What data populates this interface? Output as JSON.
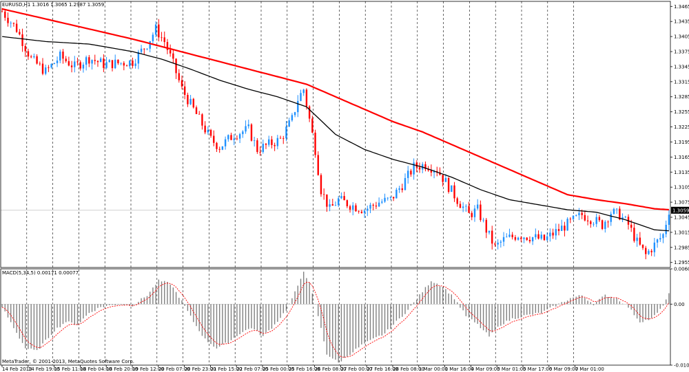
{
  "chart_data": [
    {
      "type": "candlestick",
      "title": "EURUSD,H1 1.3016 1.3065 1.2987 1.3059",
      "current_price": 1.3059,
      "current_price_label": "1.3059",
      "ylim": [
        1.2945,
        1.3475
      ],
      "y_ticks": [
        1.3465,
        1.3435,
        1.3405,
        1.3375,
        1.3345,
        1.3315,
        1.3285,
        1.3255,
        1.3225,
        1.3195,
        1.3165,
        1.3135,
        1.3105,
        1.3075,
        1.3045,
        1.3015,
        1.2985,
        1.2955
      ],
      "y_tick_labels": [
        "1.3465",
        "1.3435",
        "1.3405",
        "1.3375",
        "1.3345",
        "1.3315",
        "1.3285",
        "1.3255",
        "1.3225",
        "1.3195",
        "1.3165",
        "1.3135",
        "1.3105",
        "1.3075",
        "1.3045",
        "1.3015",
        "1.2985",
        "1.2955"
      ],
      "x_ticks": [
        "14 Feb 2013",
        "14 Feb 19:00",
        "15 Feb 11:00",
        "18 Feb 04:00",
        "18 Feb 20:00",
        "19 Feb 12:00",
        "20 Feb 07:00",
        "20 Feb 23:00",
        "21 Feb 15:00",
        "22 Feb 07:00",
        "25 Feb 00:00",
        "25 Feb 16:00",
        "26 Feb 08:00",
        "27 Feb 00:00",
        "27 Feb 16:00",
        "28 Feb 08:00",
        "1 Mar 00:00",
        "1 Mar 16:00",
        "4 Mar 09:00",
        "5 Mar 01:00",
        "5 Mar 17:00",
        "6 Mar 09:00",
        "7 Mar 01:00"
      ],
      "grid": true,
      "up_color": "#1e90ff",
      "down_color": "#ff0000",
      "ma_fast_color": "#000000",
      "ma_slow_color": "#ff0000",
      "price_path": [
        [
          0,
          1.3455
        ],
        [
          5,
          1.342
        ],
        [
          10,
          1.336
        ],
        [
          15,
          1.3335
        ],
        [
          20,
          1.3365
        ],
        [
          25,
          1.3345
        ],
        [
          30,
          1.3362
        ],
        [
          35,
          1.335
        ],
        [
          40,
          1.3352
        ],
        [
          45,
          1.3355
        ],
        [
          50,
          1.339
        ],
        [
          53,
          1.342
        ],
        [
          56,
          1.3395
        ],
        [
          59,
          1.335
        ],
        [
          62,
          1.33
        ],
        [
          65,
          1.327
        ],
        [
          68,
          1.324
        ],
        [
          72,
          1.32
        ],
        [
          75,
          1.3185
        ],
        [
          80,
          1.321
        ],
        [
          85,
          1.322
        ],
        [
          88,
          1.318
        ],
        [
          92,
          1.319
        ],
        [
          96,
          1.32
        ],
        [
          100,
          1.324
        ],
        [
          102,
          1.328
        ],
        [
          104,
          1.33
        ],
        [
          106,
          1.324
        ],
        [
          108,
          1.318
        ],
        [
          110,
          1.31
        ],
        [
          113,
          1.306
        ],
        [
          116,
          1.308
        ],
        [
          120,
          1.307
        ],
        [
          125,
          1.306
        ],
        [
          130,
          1.3075
        ],
        [
          134,
          1.308
        ],
        [
          138,
          1.311
        ],
        [
          142,
          1.3145
        ],
        [
          146,
          1.315
        ],
        [
          150,
          1.314
        ],
        [
          153,
          1.3115
        ],
        [
          157,
          1.308
        ],
        [
          161,
          1.305
        ],
        [
          164,
          1.306
        ],
        [
          167,
          1.302
        ],
        [
          170,
          1.2985
        ],
        [
          173,
          1.3
        ],
        [
          178,
          1.301
        ],
        [
          183,
          1.3005
        ],
        [
          187,
          1.3
        ],
        [
          192,
          1.302
        ],
        [
          196,
          1.3035
        ],
        [
          200,
          1.305
        ],
        [
          204,
          1.304
        ],
        [
          207,
          1.303
        ],
        [
          210,
          1.3055
        ],
        [
          213,
          1.305
        ],
        [
          216,
          1.303
        ],
        [
          219,
          1.2995
        ],
        [
          222,
          1.297
        ],
        [
          225,
          1.299
        ],
        [
          228,
          1.301
        ],
        [
          230,
          1.3059
        ]
      ],
      "ma_fast": [
        [
          0,
          1.3405
        ],
        [
          15,
          1.3395
        ],
        [
          30,
          1.339
        ],
        [
          45,
          1.3375
        ],
        [
          55,
          1.336
        ],
        [
          65,
          1.334
        ],
        [
          75,
          1.3318
        ],
        [
          85,
          1.33
        ],
        [
          95,
          1.3285
        ],
        [
          105,
          1.3265
        ],
        [
          115,
          1.321
        ],
        [
          125,
          1.318
        ],
        [
          135,
          1.316
        ],
        [
          145,
          1.3145
        ],
        [
          155,
          1.3125
        ],
        [
          165,
          1.31
        ],
        [
          175,
          1.308
        ],
        [
          185,
          1.307
        ],
        [
          195,
          1.306
        ],
        [
          205,
          1.3055
        ],
        [
          215,
          1.304
        ],
        [
          225,
          1.302
        ],
        [
          230,
          1.3018
        ]
      ],
      "ma_slow": [
        [
          0,
          1.346
        ],
        [
          15,
          1.344
        ],
        [
          30,
          1.342
        ],
        [
          45,
          1.34
        ],
        [
          55,
          1.3385
        ],
        [
          65,
          1.337
        ],
        [
          75,
          1.3355
        ],
        [
          85,
          1.334
        ],
        [
          95,
          1.3325
        ],
        [
          105,
          1.331
        ],
        [
          115,
          1.3285
        ],
        [
          125,
          1.326
        ],
        [
          135,
          1.3235
        ],
        [
          145,
          1.3215
        ],
        [
          155,
          1.319
        ],
        [
          165,
          1.3165
        ],
        [
          175,
          1.314
        ],
        [
          185,
          1.3115
        ],
        [
          195,
          1.309
        ],
        [
          205,
          1.308
        ],
        [
          215,
          1.3072
        ],
        [
          225,
          1.3062
        ],
        [
          230,
          1.306
        ]
      ]
    },
    {
      "type": "bar",
      "title": "MACD(5,34,5) 0.00171 0.00077",
      "ylim": [
        -0.0104,
        0.00601
      ],
      "y_ticks": [
        0.00601,
        0.0,
        -0.0104
      ],
      "y_tick_labels": [
        "0.00601",
        "0.00",
        "-0.0104"
      ],
      "bar_color": "#808080",
      "signal_color": "#ff0000",
      "macd_path": [
        [
          0,
          -0.0005
        ],
        [
          8,
          -0.0075
        ],
        [
          12,
          -0.008
        ],
        [
          18,
          -0.0045
        ],
        [
          22,
          -0.003
        ],
        [
          26,
          -0.0035
        ],
        [
          30,
          -0.0015
        ],
        [
          34,
          -0.0005
        ],
        [
          40,
          0.0
        ],
        [
          45,
          -0.0002
        ],
        [
          50,
          0.0015
        ],
        [
          54,
          0.004
        ],
        [
          58,
          0.0035
        ],
        [
          62,
          0.0005
        ],
        [
          66,
          -0.003
        ],
        [
          70,
          -0.006
        ],
        [
          74,
          -0.0075
        ],
        [
          78,
          -0.0065
        ],
        [
          82,
          -0.005
        ],
        [
          86,
          -0.004
        ],
        [
          90,
          -0.0055
        ],
        [
          94,
          -0.0035
        ],
        [
          98,
          -0.001
        ],
        [
          102,
          0.003
        ],
        [
          104,
          0.0057
        ],
        [
          106,
          0.0035
        ],
        [
          109,
          -0.002
        ],
        [
          112,
          -0.0085
        ],
        [
          116,
          -0.01
        ],
        [
          120,
          -0.0085
        ],
        [
          124,
          -0.007
        ],
        [
          128,
          -0.006
        ],
        [
          132,
          -0.005
        ],
        [
          136,
          -0.003
        ],
        [
          140,
          -0.001
        ],
        [
          144,
          0.0015
        ],
        [
          148,
          0.004
        ],
        [
          152,
          0.003
        ],
        [
          156,
          0.001
        ],
        [
          160,
          -0.002
        ],
        [
          164,
          -0.0035
        ],
        [
          168,
          -0.0055
        ],
        [
          172,
          -0.0035
        ],
        [
          176,
          -0.0025
        ],
        [
          180,
          -0.002
        ],
        [
          186,
          -0.0015
        ],
        [
          192,
          0.0
        ],
        [
          196,
          0.001
        ],
        [
          200,
          0.0015
        ],
        [
          204,
          0.0
        ],
        [
          208,
          0.0015
        ],
        [
          212,
          0.001
        ],
        [
          216,
          -0.0005
        ],
        [
          220,
          -0.003
        ],
        [
          224,
          -0.0025
        ],
        [
          227,
          -0.001
        ],
        [
          230,
          0.0017
        ]
      ]
    }
  ],
  "footer_text": "MetaTrader, © 2001-2013, MetaQuotes Software Corp."
}
